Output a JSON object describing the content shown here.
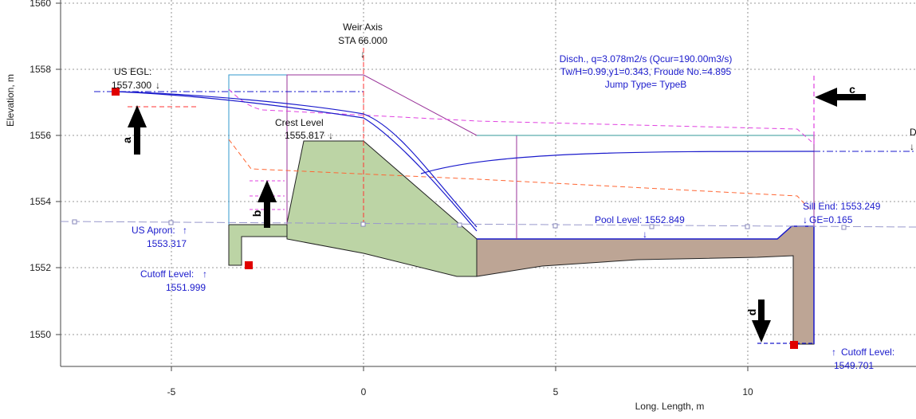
{
  "axes": {
    "x_label": "Long. Length, m",
    "y_label": "Elevation, m",
    "x_ticks": [
      "-5",
      "0",
      "5",
      "10"
    ],
    "y_ticks": [
      "1560",
      "1558",
      "1556",
      "1554",
      "1552",
      "1550"
    ]
  },
  "annotations": {
    "weir_axis": "Weir Axis",
    "weir_sta": "STA 66.000",
    "us_egl_label": "US EGL:",
    "us_egl_value": "1557.300",
    "crest_label": "Crest Level",
    "crest_value": "1555.817",
    "us_apron_label": "US Apron:",
    "us_apron_value": "1553.317",
    "cutoff_us_label": "Cutoff Level:",
    "cutoff_us_value": "1551.999",
    "discharge_line1": "Disch., q=3.078m2/s (Qcur=190.00m3/s)",
    "discharge_line2": "Tw/H=0.99,y1=0.343, Froude No.=4.895",
    "discharge_line3": "Jump Type= TypeB",
    "pool_level": "Pool Level: 1552.849",
    "sill_end": "Sill End: 1553.249",
    "ge": "GE=0.165",
    "cutoff_ds_label": "Cutoff Level:",
    "cutoff_ds_value": "1549.701",
    "edge_label": "D"
  },
  "arrow_labels": [
    "a",
    "b",
    "c",
    "d"
  ],
  "colors": {
    "weir_body": "#bcd4a5",
    "apron_body": "#bda595",
    "structure_outline": "#1a1acc",
    "energy_line": "#e040e0",
    "hydraulic_line": "#ff6633",
    "grid": "#666666",
    "marker": "#e00000"
  }
}
